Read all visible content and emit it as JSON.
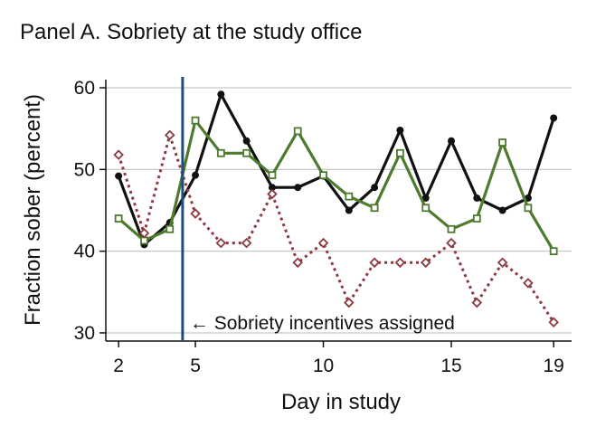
{
  "chart_data": {
    "type": "line",
    "title": "Panel A. Sobriety at the study office",
    "xlabel": "Day in study",
    "ylabel": "Fraction sober (percent)",
    "xlim": [
      1.5,
      19.7
    ],
    "ylim": [
      29,
      61
    ],
    "xticks": [
      2,
      5,
      10,
      15,
      19
    ],
    "yticks": [
      30,
      40,
      50,
      60
    ],
    "grid": true,
    "x": [
      2,
      3,
      4,
      5,
      6,
      7,
      8,
      9,
      10,
      11,
      12,
      13,
      14,
      15,
      16,
      17,
      18,
      19
    ],
    "series": [
      {
        "color": "#111111",
        "style": "solid",
        "marker": "circle",
        "values": [
          49.2,
          40.8,
          43.5,
          49.3,
          59.2,
          53.5,
          47.8,
          47.8,
          49.2,
          45.0,
          47.8,
          54.8,
          46.5,
          53.5,
          46.5,
          45.0,
          46.5,
          56.3
        ]
      },
      {
        "color": "#4e7a2e",
        "style": "solid",
        "marker": "square",
        "values": [
          44.0,
          41.3,
          42.7,
          56.0,
          52.0,
          52.0,
          49.3,
          54.7,
          49.3,
          46.7,
          45.3,
          52.0,
          45.3,
          42.7,
          44.0,
          53.3,
          45.3,
          40.0
        ]
      },
      {
        "color": "#8b3a3f",
        "style": "dotted",
        "marker": "diamond",
        "values": [
          51.8,
          42.2,
          54.2,
          44.6,
          41.0,
          41.0,
          47.0,
          38.6,
          41.0,
          33.7,
          38.6,
          38.6,
          38.6,
          41.0,
          33.7,
          38.6,
          36.1,
          31.3
        ]
      }
    ],
    "annotation": {
      "text": "← Sobriety incentives assigned",
      "x": 4.5,
      "line_color": "#1f4e79"
    }
  }
}
